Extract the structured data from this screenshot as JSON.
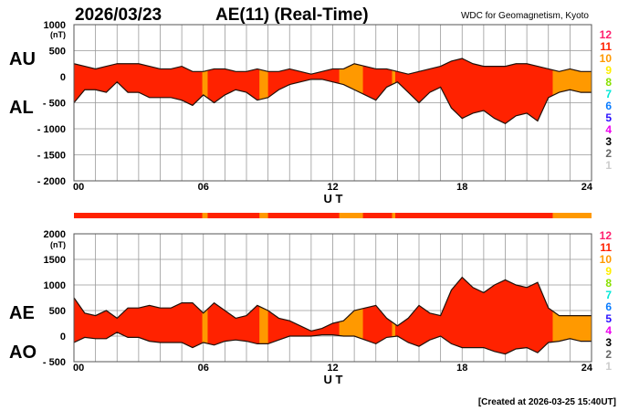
{
  "header": {
    "date": "2026/03/23",
    "title": "AE(11) (Real-Time)",
    "source": "WDC for Geomagnetism, Kyoto",
    "footer": "[Created at 2026-03-25 15:40UT]"
  },
  "station_legend": {
    "labels": [
      "12",
      "11",
      "10",
      "9",
      "8",
      "7",
      "6",
      "5",
      "4",
      "3",
      "2",
      "1"
    ],
    "colors": [
      "#ff1f6e",
      "#ff2200",
      "#ff9900",
      "#ffee00",
      "#88e000",
      "#00e8d8",
      "#0a7cff",
      "#2a10ff",
      "#ee00ee",
      "#000000",
      "#666666",
      "#cccccc"
    ]
  },
  "chart_data": [
    {
      "type": "area",
      "name": "AU/AL",
      "labels": {
        "upper": "AU",
        "lower": "AL"
      },
      "unit": "(nT)",
      "xlabel": "U T",
      "xlim": [
        0,
        24
      ],
      "xticks": [
        "00",
        "06",
        "12",
        "18",
        "24"
      ],
      "ylim": [
        -2000,
        1000
      ],
      "yticks": [
        "1000",
        "500",
        "0",
        "- 500",
        "- 1000",
        "- 1500",
        "- 2000"
      ],
      "ytick_values": [
        1000,
        500,
        0,
        -500,
        -1000,
        -1500,
        -2000
      ],
      "grid": true,
      "x": [
        0,
        0.5,
        1,
        1.5,
        2,
        2.5,
        3,
        3.5,
        4,
        4.5,
        5,
        5.5,
        6,
        6.5,
        7,
        7.5,
        8,
        8.5,
        9,
        9.5,
        10,
        10.5,
        11,
        11.5,
        12,
        12.5,
        13,
        13.5,
        14,
        14.5,
        15,
        15.5,
        16,
        16.5,
        17,
        17.5,
        18,
        18.5,
        19,
        19.5,
        20,
        20.5,
        21,
        21.5,
        22,
        22.5,
        23,
        23.5,
        24
      ],
      "series": [
        {
          "name": "AU",
          "values": [
            250,
            200,
            150,
            200,
            250,
            250,
            250,
            200,
            150,
            150,
            200,
            100,
            100,
            150,
            150,
            100,
            100,
            150,
            100,
            100,
            150,
            100,
            50,
            100,
            150,
            150,
            250,
            200,
            150,
            150,
            100,
            50,
            100,
            150,
            200,
            300,
            350,
            250,
            200,
            200,
            200,
            250,
            250,
            200,
            150,
            100,
            150,
            100,
            100
          ]
        },
        {
          "name": "AL",
          "values": [
            -500,
            -250,
            -250,
            -300,
            -100,
            -300,
            -300,
            -400,
            -400,
            -400,
            -450,
            -550,
            -350,
            -500,
            -350,
            -250,
            -300,
            -450,
            -400,
            -250,
            -150,
            -100,
            -50,
            -50,
            -100,
            -150,
            -250,
            -350,
            -450,
            -200,
            -100,
            -300,
            -500,
            -300,
            -200,
            -600,
            -800,
            -700,
            -650,
            -800,
            -900,
            -750,
            -700,
            -850,
            -400,
            -300,
            -250,
            -300,
            -300
          ]
        }
      ]
    },
    {
      "type": "area",
      "name": "AE/AO",
      "labels": {
        "upper": "AE",
        "lower": "AO"
      },
      "unit": "(nT)",
      "xlabel": "U T",
      "xlim": [
        0,
        24
      ],
      "xticks": [
        "00",
        "06",
        "12",
        "18",
        "24"
      ],
      "ylim": [
        -500,
        2000
      ],
      "yticks": [
        "2000",
        "1500",
        "1000",
        "500",
        "0",
        "- 500"
      ],
      "ytick_values": [
        2000,
        1500,
        1000,
        500,
        0,
        -500
      ],
      "grid": true,
      "derived": "AE = AU - AL, AO = (AU + AL) / 2"
    }
  ],
  "station_count_band": {
    "default_count": 11,
    "segments": [
      {
        "start": 5.95,
        "end": 6.2,
        "count": 10
      },
      {
        "start": 8.6,
        "end": 9.0,
        "count": 10
      },
      {
        "start": 12.3,
        "end": 13.4,
        "count": 10
      },
      {
        "start": 14.75,
        "end": 14.9,
        "count": 10
      },
      {
        "start": 22.2,
        "end": 24,
        "count": 10
      }
    ]
  }
}
